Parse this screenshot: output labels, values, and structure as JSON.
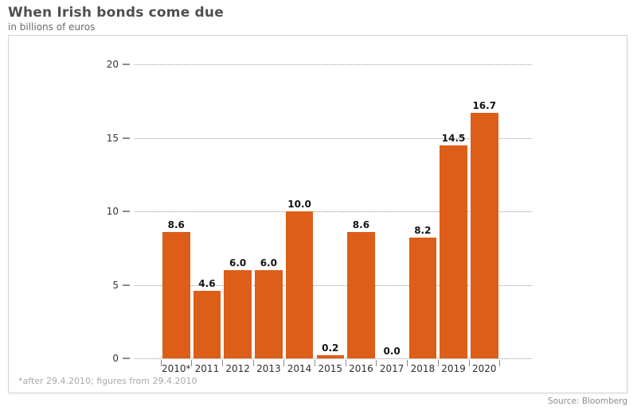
{
  "header": {
    "title": "When Irish bonds come due",
    "subtitle": "in billions of euros"
  },
  "chart_data": {
    "type": "bar",
    "title": "When Irish bonds come due",
    "subtitle": "in billions of euros",
    "xlabel": "",
    "ylabel": "in billions of euros",
    "categories": [
      "2010*",
      "2011",
      "2012",
      "2013",
      "2014",
      "2015",
      "2016",
      "2017",
      "2018",
      "2019",
      "2020"
    ],
    "values": [
      8.6,
      4.6,
      6.0,
      6.0,
      10.0,
      0.2,
      8.6,
      0.0,
      8.2,
      14.5,
      16.7
    ],
    "value_labels": [
      "8.6",
      "4.6",
      "6.0",
      "6.0",
      "10.0",
      "0.2",
      "8.6",
      "0.0",
      "8.2",
      "14.5",
      "16.7"
    ],
    "ylim": [
      0,
      20
    ],
    "yticks": [
      0,
      5,
      10,
      15,
      20
    ],
    "grid": "horizontal-dotted",
    "legend": "none",
    "bar_color": "#dc5e19"
  },
  "footer": {
    "footnote": "*after 29.4.2010; figures from 29.4.2010",
    "source": "Source: Bloomberg"
  },
  "colors": {
    "bar": "#dc5e19",
    "title_text": "#4f4f51",
    "subtitle_text": "#6b6b6b",
    "axis_text": "#2b2f36",
    "value_text": "#141414",
    "gridline": "#999999",
    "panel_border": "#d4d4d4",
    "footnote_text": "#a9a9a9",
    "source_text": "#8c8c8c",
    "background": "#ffffff"
  }
}
